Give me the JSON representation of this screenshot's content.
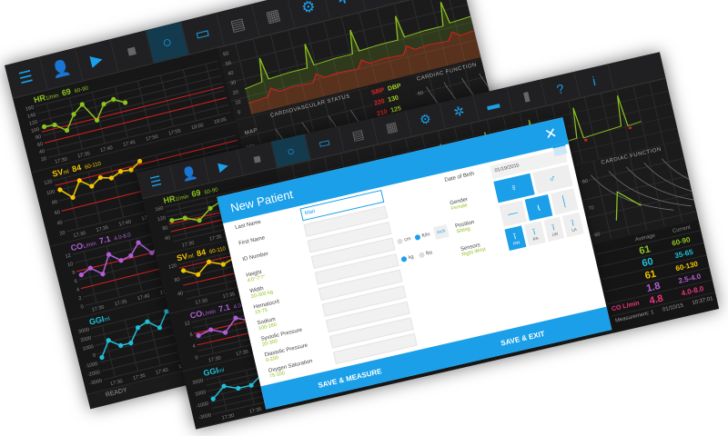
{
  "colors": {
    "accent": "#1a9fe8",
    "hr": "#8dc21f",
    "sv": "#f2c500",
    "co": "#b05fd6",
    "ggi": "#1fc0d8",
    "co_summary": "#e8357a",
    "limit": "#d42020",
    "background": "#1b1b1c"
  },
  "back_toolbar": [
    "menu-icon",
    "user-search-icon",
    "play-icon",
    "stop-icon",
    "circle-icon",
    "chat-icon",
    "document-icon",
    "calculator-icon",
    "gear-icon",
    "wrench-gear-icon",
    "printer-icon"
  ],
  "front_toolbar": [
    "menu-icon",
    "user-search-icon",
    "play-icon",
    "stop-icon",
    "circle-icon",
    "chat-icon",
    "document-icon",
    "calculator-icon",
    "gear-icon",
    "wrench-gear-icon",
    "printer-icon",
    "bar-chart-icon",
    "help-icon",
    "info-icon"
  ],
  "charts": {
    "hr": {
      "label": "HR",
      "unit": "1/min",
      "value": "69",
      "range": "60-90",
      "yticks": [
        160,
        140,
        120,
        100,
        80,
        60,
        40,
        20
      ],
      "ymin": 20,
      "ymax": 160,
      "limits": [
        60,
        90
      ],
      "values": [
        102,
        100,
        78,
        115,
        135,
        85,
        122,
        128,
        112
      ]
    },
    "sv": {
      "label": "SV",
      "unit": "ml",
      "value": "84",
      "range": "60-110",
      "yticks": [
        120,
        100,
        80,
        60,
        40,
        20
      ],
      "ymin": 20,
      "ymax": 120,
      "limits": [
        60,
        110
      ],
      "values": [
        100,
        80,
        108,
        92,
        104,
        98,
        106,
        104,
        116
      ]
    },
    "co": {
      "label": "CO",
      "unit": "L/min",
      "value": "7.1",
      "range": "4.0-8.0",
      "yticks": [
        12,
        10,
        8,
        6,
        4,
        2,
        0
      ],
      "ymin": 0,
      "ymax": 12,
      "limits": [
        4,
        8
      ],
      "values": [
        7,
        8,
        6,
        10,
        8,
        8.5,
        11,
        8,
        9.5
      ]
    },
    "ggi": {
      "label": "GGI",
      "unit": "ml",
      "value": "",
      "range": "",
      "yticks": [
        3000,
        2000,
        1000,
        0,
        -1000,
        -2000,
        -3000
      ],
      "ymin": -3000,
      "ymax": 3000,
      "limits": [],
      "values": [
        -500,
        1200,
        300,
        300,
        1800,
        2200,
        1200,
        2800,
        1900
      ]
    }
  },
  "back_xticks": [
    "17:30",
    "17:35",
    "17:40",
    "17:45",
    "17:50",
    "17:55",
    "18:00",
    "18:05"
  ],
  "front_xticks": [
    "17:30",
    "17:35",
    "17:40",
    "17:45"
  ],
  "back_status": "READY",
  "back_status_right": "Pa",
  "bp_chart": {
    "yticks": [
      60,
      50,
      40,
      30,
      20,
      10,
      0
    ]
  },
  "cardiovascular": {
    "title": "CARDIOVASCULAR STATUS",
    "axis": "MAP",
    "yticks": [
      160,
      150,
      140,
      130
    ]
  },
  "bp_table": {
    "headers": [
      "SBP",
      "DBP"
    ],
    "rows": [
      [
        "220",
        "130"
      ],
      [
        "210",
        "125"
      ],
      [
        "200",
        "120"
      ],
      [
        "190",
        "115"
      ],
      [
        "180",
        "110"
      ],
      [
        "170",
        "105"
      ],
      [
        "160",
        "100"
      ]
    ]
  },
  "cardiac_function": {
    "title": "CARDIAC FUNCTION",
    "yticks": [
      80,
      70,
      60
    ]
  },
  "dialog": {
    "title": "New Patient",
    "fields": [
      {
        "label": "Last Name",
        "hint": "",
        "value": "Mari"
      },
      {
        "label": "First Name",
        "hint": "",
        "value": ""
      },
      {
        "label": "ID Number",
        "hint": "",
        "value": ""
      },
      {
        "label": "Height",
        "hint": "4'0\"-7'7\"",
        "value": ""
      },
      {
        "label": "Width",
        "hint": "20-300 kg",
        "value": ""
      },
      {
        "label": "Hematocrit",
        "hint": "15-75",
        "value": ""
      },
      {
        "label": "Sodium",
        "hint": "100-160",
        "value": ""
      },
      {
        "label": "Systolic Pressure",
        "hint": "20-300",
        "value": ""
      },
      {
        "label": "Diastolic Pressure",
        "hint": "0-200",
        "value": ""
      },
      {
        "label": "Oxygen Saturation",
        "hint": "75-100",
        "value": ""
      }
    ],
    "height_units": [
      {
        "label": "cm",
        "selected": false
      },
      {
        "label": "ft/in",
        "selected": true
      }
    ],
    "height_unit_button": "inch",
    "weight_units": [
      {
        "label": "kg",
        "selected": true
      },
      {
        "label": "lbs",
        "selected": false
      }
    ],
    "right_fields": [
      {
        "label": "Date of Birth",
        "value": ""
      },
      {
        "label": "Gender",
        "value": "Female"
      },
      {
        "label": "Position",
        "value": "Sitting"
      },
      {
        "label": "Sensors",
        "value": "Right Wrist"
      }
    ],
    "date_value": "01/19/2015",
    "gender_buttons": [
      {
        "icon": "female-icon",
        "selected": true
      },
      {
        "icon": "male-icon",
        "selected": false
      }
    ],
    "position_buttons": [
      {
        "icon": "lying-icon",
        "selected": false
      },
      {
        "icon": "sitting-icon",
        "selected": true
      },
      {
        "icon": "standing-icon",
        "selected": false
      }
    ],
    "sensor_buttons": [
      {
        "label": "RW",
        "selected": true
      },
      {
        "label": "RA",
        "selected": false
      },
      {
        "label": "LW",
        "selected": false
      },
      {
        "label": "LA",
        "selected": false
      }
    ],
    "save_measure": "SAVE & MEASURE",
    "save_exit": "SAVE & EXIT"
  },
  "summary": {
    "headers": [
      "",
      "",
      "",
      "",
      "CO L/min"
    ],
    "row_labels": [
      "Average",
      "Current"
    ],
    "values": [
      "61",
      "60",
      "61",
      "1.8",
      "4.8"
    ],
    "ranges": [
      "60-90",
      "35-65",
      "60-130",
      "2.5-4.0",
      "4.0-8.0"
    ],
    "measurement": "Measurement: 1",
    "date": "01/10/15",
    "time": "10:37:01"
  }
}
